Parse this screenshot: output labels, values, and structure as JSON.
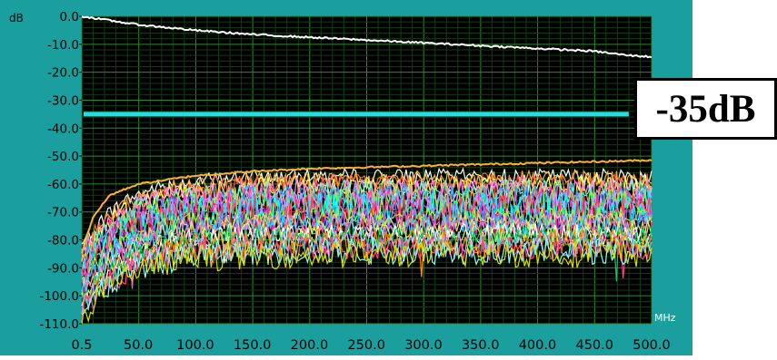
{
  "chart_data": {
    "type": "line",
    "yunit": "dB",
    "xunit": "MHz",
    "xlim": [
      0.5,
      500.0
    ],
    "ylim": [
      -110.0,
      0.0
    ],
    "xticks": [
      "0.5",
      "50.0",
      "100.0",
      "150.0",
      "200.0",
      "250.0",
      "300.0",
      "350.0",
      "400.0",
      "450.0",
      "500.0"
    ],
    "yticks": [
      "0.0",
      "-10.0",
      "-20.0",
      "-30.0",
      "-40.0",
      "-50.0",
      "-60.0",
      "-70.0",
      "-80.0",
      "-90.0",
      "-100.0",
      "-110.0"
    ],
    "grid": true,
    "threshold": {
      "label": "-35dB",
      "value": -35,
      "color": "#1fe0e8"
    },
    "series": [
      {
        "x": [
          0.5,
          50,
          100,
          150,
          200,
          250,
          300,
          350,
          400,
          450,
          480,
          500
        ],
        "values": [
          0,
          -3,
          -5,
          -6.5,
          -7.5,
          -8.5,
          -9.5,
          -10.5,
          -11.5,
          -12.5,
          -14,
          -14.5
        ],
        "color": "#ffffff"
      },
      {
        "x": [
          0.5,
          10,
          25,
          50,
          100,
          150,
          200,
          300,
          400,
          500
        ],
        "values": [
          -85,
          -72,
          -64,
          -60,
          -57,
          -55.5,
          -54.5,
          -53.5,
          -52.5,
          -51.5
        ],
        "color": "#ffb030"
      }
    ],
    "noise_floor_family": {
      "count": 26,
      "start_level_range": [
        -108,
        -82
      ],
      "settled_level_range": [
        -85,
        -57
      ],
      "colors": [
        "#ffffff",
        "#ffb030",
        "#ff6040",
        "#ffff66",
        "#ff80ff",
        "#66ffcc",
        "#ff9966",
        "#3399ff",
        "#ff33cc",
        "#66ff66",
        "#cc99ff",
        "#00ffff",
        "#ff3366",
        "#99ff33",
        "#9966ff",
        "#ffcc99",
        "#33ccff",
        "#ff66b2",
        "#ccff66",
        "#ffffff",
        "#00cc66",
        "#ff8800",
        "#b0b0ff",
        "#ff4488",
        "#88ffee",
        "#dddd00"
      ]
    }
  },
  "colors": {
    "frame": "#1a9e9e",
    "plot_background": "#000000",
    "grid_major": "#2d8a2d",
    "grid_minor": "#123d12"
  }
}
